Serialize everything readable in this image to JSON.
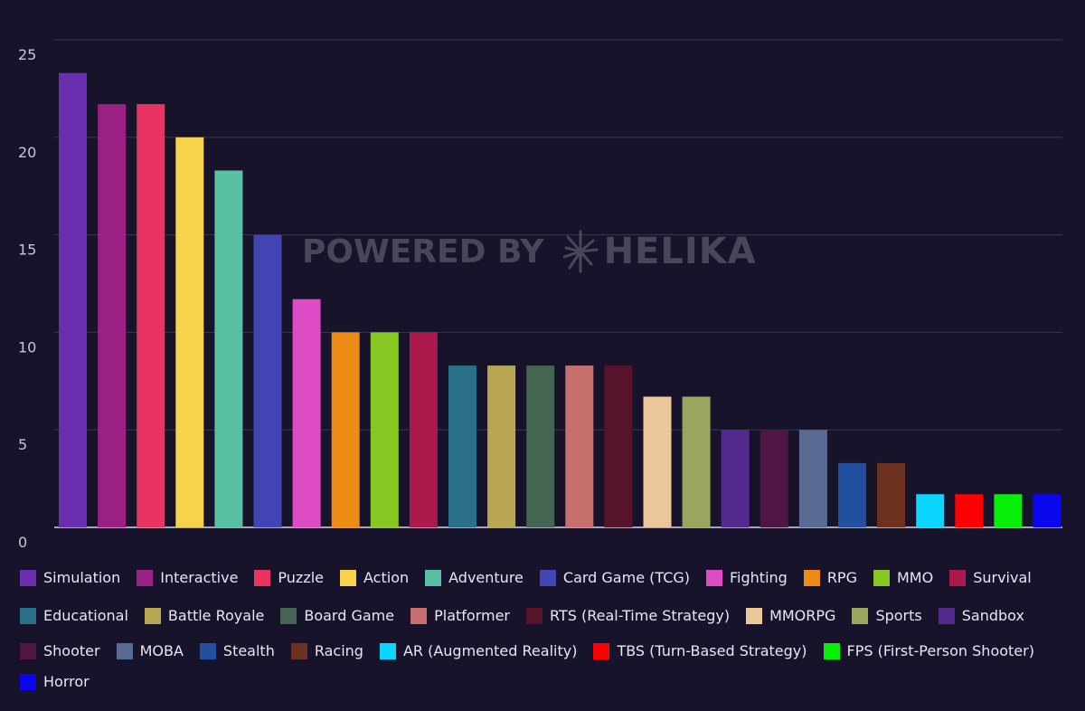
{
  "watermark": {
    "prefix": "POWERED BY",
    "brand": "HELIKA"
  },
  "chart_data": {
    "type": "bar",
    "title": "",
    "xlabel": "",
    "ylabel": "",
    "ylim": [
      0,
      25
    ],
    "yticks": [
      0,
      5,
      10,
      15,
      20,
      25
    ],
    "grid": true,
    "legend_position": "bottom",
    "categories": [
      "Simulation",
      "Interactive",
      "Puzzle",
      "Action",
      "Adventure",
      "Card Game (TCG)",
      "Fighting",
      "RPG",
      "MMO",
      "Survival",
      "Educational",
      "Battle Royale",
      "Board Game",
      "Platformer",
      "RTS (Real-Time Strategy)",
      "MMORPG",
      "Sports",
      "Sandbox",
      "Shooter",
      "MOBA",
      "Stealth",
      "Racing",
      "AR (Augmented Reality)",
      "TBS (Turn-Based Strategy)",
      "FPS (First-Person Shooter)",
      "Horror"
    ],
    "values": [
      23.3,
      21.7,
      21.7,
      20.0,
      18.3,
      15.0,
      11.7,
      10.0,
      10.0,
      10.0,
      8.3,
      8.3,
      8.3,
      8.3,
      8.3,
      6.7,
      6.7,
      5.0,
      5.0,
      5.0,
      3.3,
      3.3,
      1.7,
      1.7,
      1.7,
      1.7
    ],
    "colors": [
      "#6a2fae",
      "#9a2183",
      "#e93360",
      "#f6d24d",
      "#59c0a4",
      "#4244b3",
      "#dd4bc5",
      "#ec8b16",
      "#87c623",
      "#ac1a4d",
      "#2a7088",
      "#b9a653",
      "#436551",
      "#c76f6d",
      "#561329",
      "#ebc79a",
      "#9aa660",
      "#552a8e",
      "#4f1545",
      "#596b92",
      "#22509f",
      "#6c321f",
      "#0ad6ff",
      "#fd0204",
      "#07ee08",
      "#0a06ee"
    ],
    "legend_rows": [
      10,
      8,
      7,
      1
    ]
  }
}
